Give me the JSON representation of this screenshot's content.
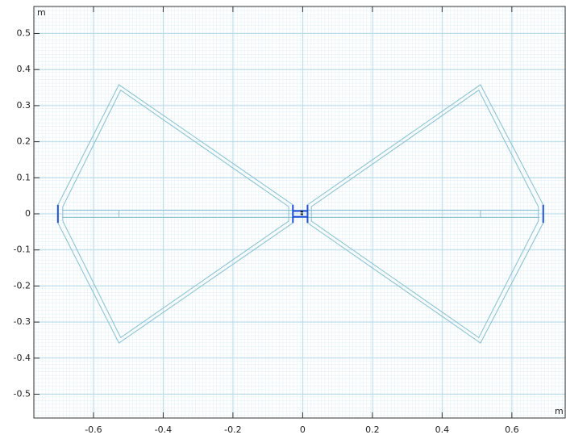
{
  "chart_data": {
    "type": "line",
    "x_unit": "m",
    "y_unit": "m",
    "xlim": [
      -0.771,
      0.753
    ],
    "ylim": [
      -0.566,
      0.575
    ],
    "xticks": [
      -0.6,
      -0.4,
      -0.2,
      0,
      0.2,
      0.4,
      0.6
    ],
    "yticks": [
      -0.5,
      -0.4,
      -0.3,
      -0.2,
      -0.1,
      0,
      0.1,
      0.2,
      0.3,
      0.4,
      0.5
    ],
    "grid": true,
    "series": [
      {
        "color": "#8cc4d6",
        "x": [
          0.014,
          0.51,
          0.69,
          0.69,
          0.51,
          0.014,
          0.014
        ],
        "values": [
          0.025,
          0.358,
          0.025,
          -0.025,
          -0.358,
          -0.025,
          0.025
        ]
      },
      {
        "color": "#8cc4d6",
        "x": [
          0.025,
          0.505,
          0.676,
          0.676,
          0.505,
          0.025,
          0.025
        ],
        "values": [
          0.02,
          0.343,
          0.02,
          -0.02,
          -0.343,
          -0.02,
          0.02
        ]
      },
      {
        "color": "#8cc4d6",
        "x": [
          -0.028,
          -0.527,
          -0.702,
          -0.702,
          -0.527,
          -0.028,
          -0.028
        ],
        "values": [
          0.025,
          0.358,
          0.025,
          -0.025,
          -0.358,
          -0.025,
          0.025
        ]
      },
      {
        "color": "#8cc4d6",
        "x": [
          -0.04,
          -0.522,
          -0.688,
          -0.688,
          -0.522,
          -0.04,
          -0.04
        ],
        "values": [
          0.02,
          0.343,
          0.02,
          -0.02,
          -0.343,
          -0.02,
          0.02
        ]
      },
      {
        "color": "#8cc4d6",
        "x": [
          -0.69,
          0.68
        ],
        "values": [
          0.01,
          0.01
        ]
      },
      {
        "color": "#8cc4d6",
        "x": [
          -0.69,
          0.68
        ],
        "values": [
          -0.01,
          -0.01
        ]
      },
      {
        "color": "#8cc4d6",
        "x": [
          -0.527,
          -0.527
        ],
        "values": [
          0.01,
          -0.01
        ]
      },
      {
        "color": "#8cc4d6",
        "x": [
          0.51,
          0.51
        ],
        "values": [
          0.01,
          -0.01
        ]
      },
      {
        "color": "#1f50d8",
        "x": [
          -0.702,
          -0.702
        ],
        "values": [
          0.025,
          -0.025
        ]
      },
      {
        "color": "#1f50d8",
        "x": [
          0.69,
          0.69
        ],
        "values": [
          0.025,
          -0.025
        ]
      },
      {
        "color": "#1f50d8",
        "x": [
          -0.028,
          -0.028
        ],
        "values": [
          0.025,
          -0.025
        ]
      },
      {
        "color": "#1f50d8",
        "x": [
          0.014,
          0.014
        ],
        "values": [
          0.025,
          -0.025
        ]
      },
      {
        "color": "#1f50d8",
        "x": [
          -0.028,
          0.014
        ],
        "values": [
          0.008,
          0.008
        ]
      },
      {
        "color": "#1f50d8",
        "x": [
          -0.028,
          0.014
        ],
        "values": [
          -0.008,
          -0.008
        ]
      },
      {
        "color": "#111111",
        "x": [
          -0.006,
          0.001
        ],
        "values": [
          0.006,
          0.006
        ]
      },
      {
        "color": "#111111",
        "x": [
          -0.006,
          0.001
        ],
        "values": [
          -0.001,
          -0.001
        ]
      }
    ]
  }
}
